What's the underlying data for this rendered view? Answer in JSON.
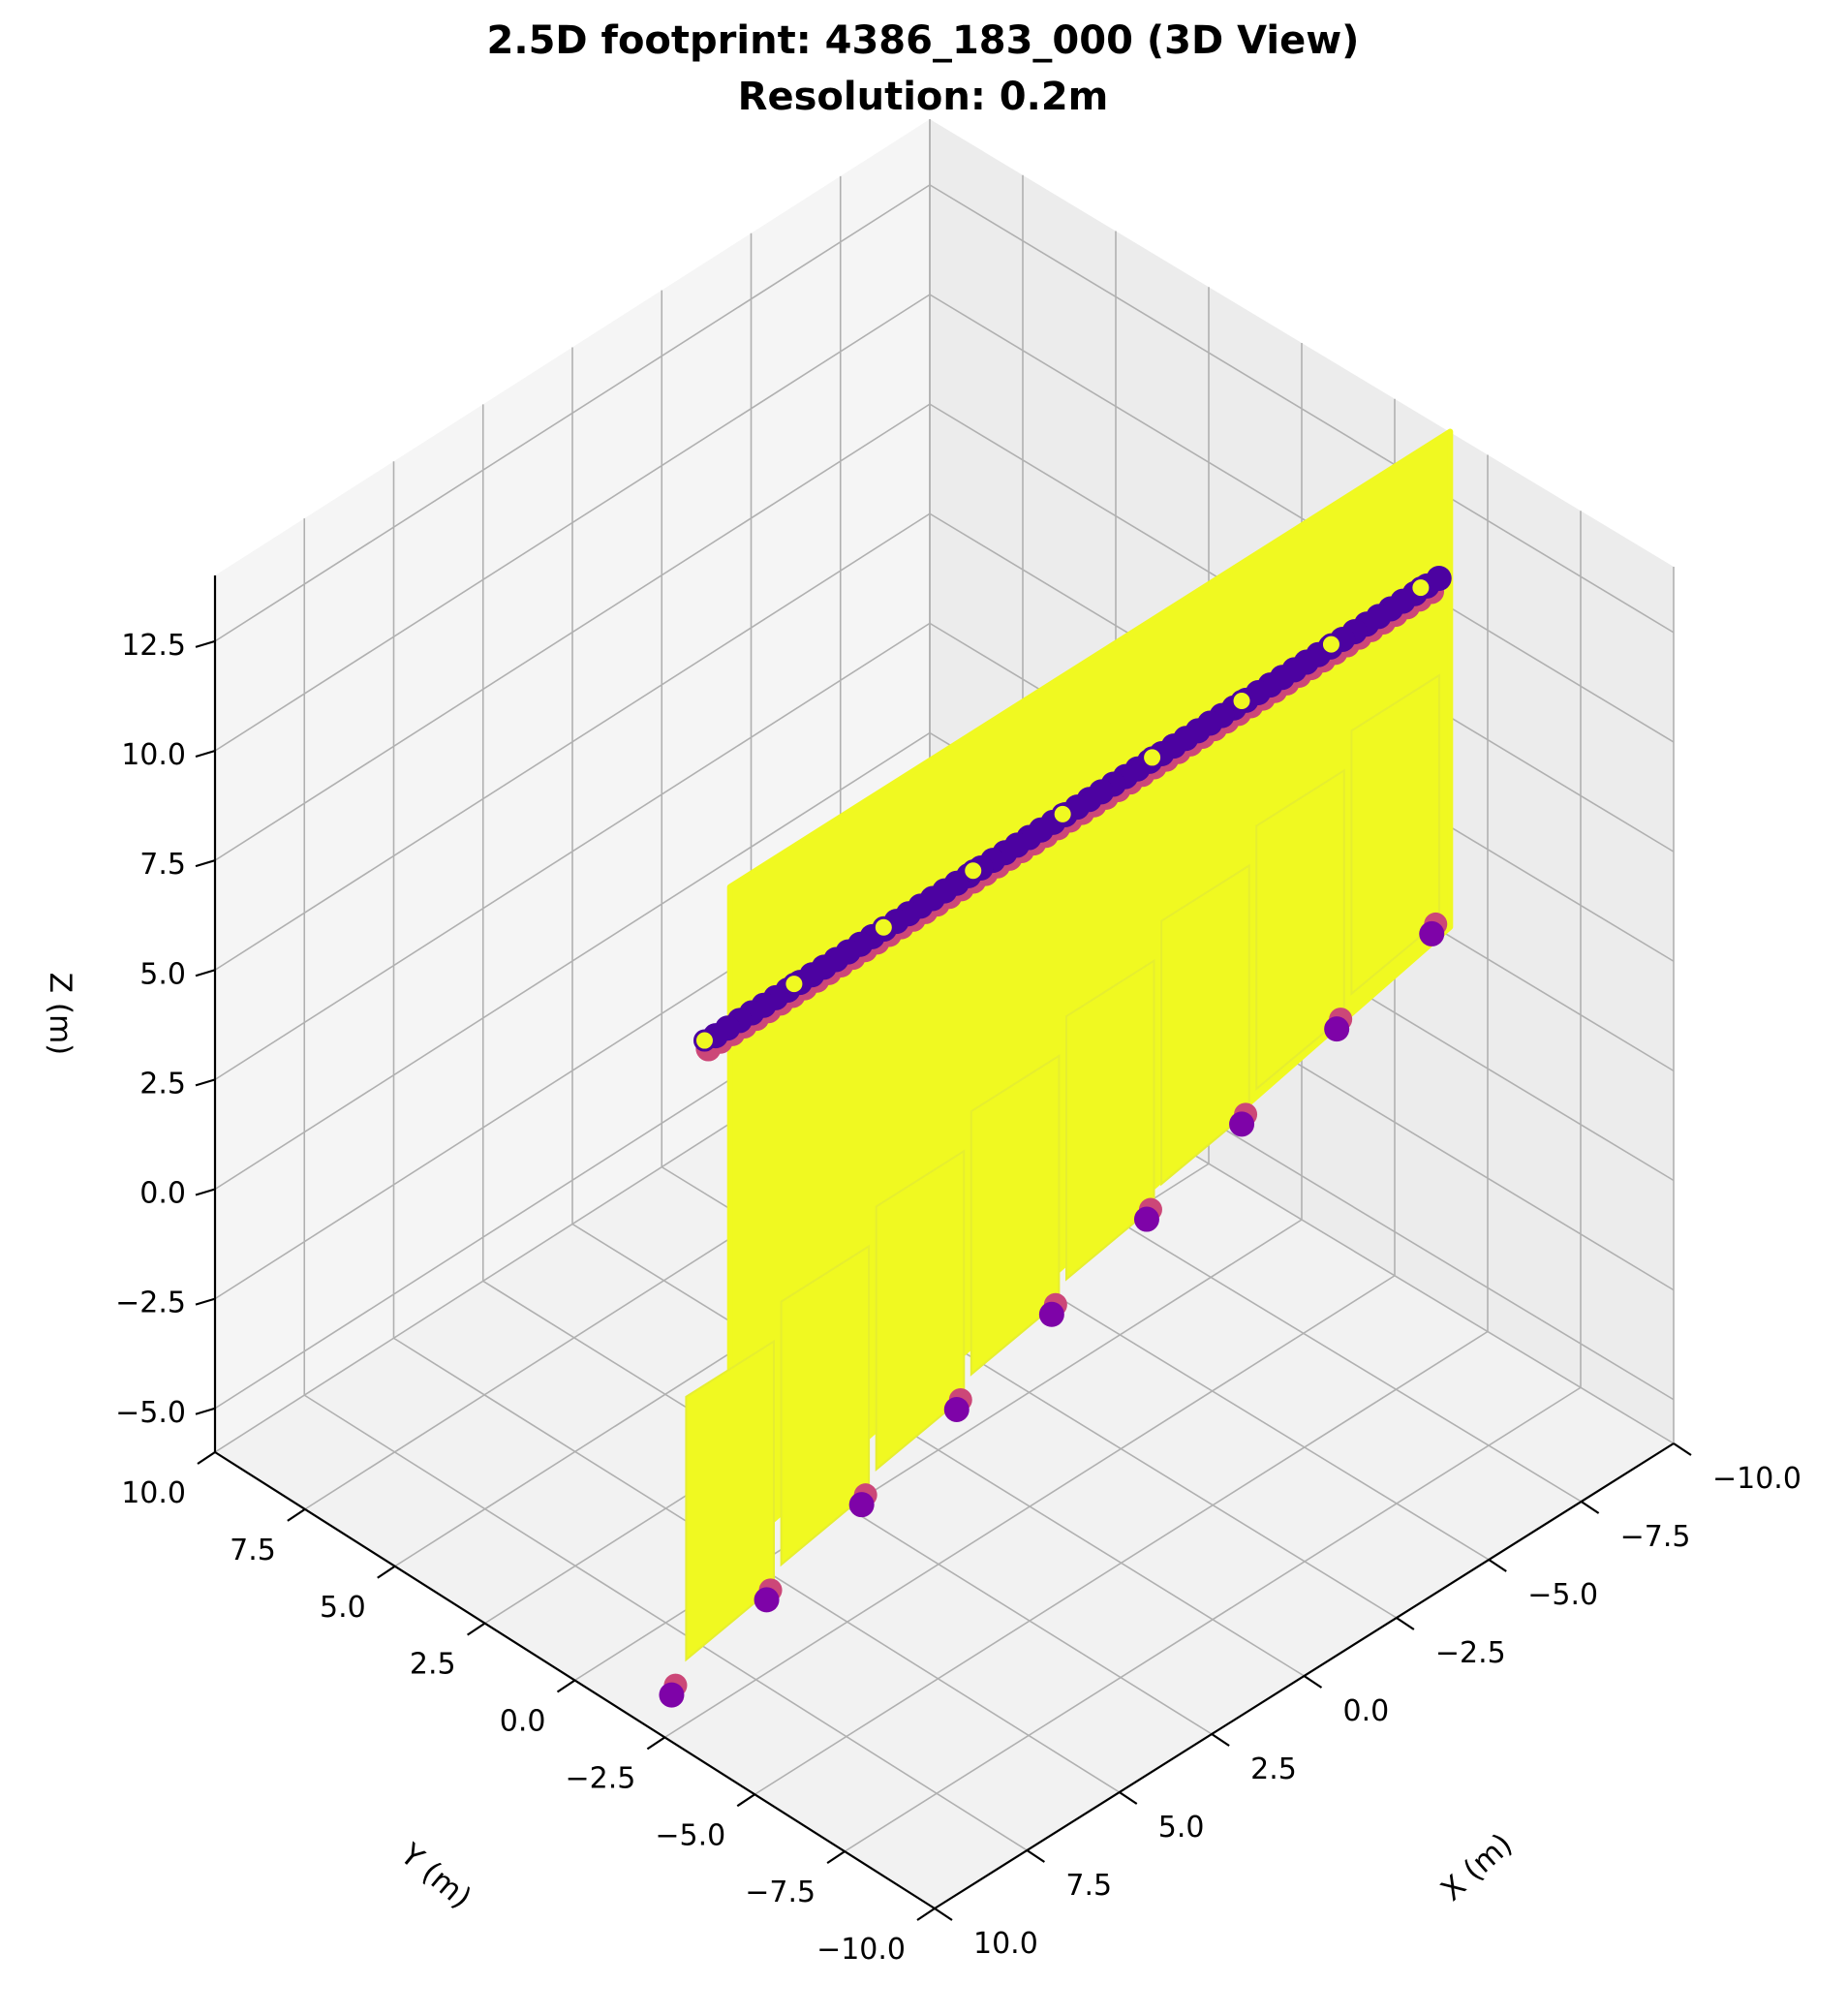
{
  "chart_data": {
    "type": "scatter",
    "projection": "3d",
    "title": "2.5D footprint: 4386_183_000 (3D View)",
    "subtitle": "Resolution: 0.2m",
    "xlabel": "X (m)",
    "ylabel": "Y (m)",
    "zlabel": "Z (m)",
    "xlim": [
      -10,
      10
    ],
    "ylim": [
      -10,
      10
    ],
    "zlim": [
      -6,
      14
    ],
    "grid": true,
    "xticks": [
      "−10.0",
      "−7.5",
      "−5.0",
      "−2.5",
      "0.0",
      "2.5",
      "5.0",
      "7.5",
      "10.0"
    ],
    "yticks": [
      "−10.0",
      "−7.5",
      "−5.0",
      "−2.5",
      "0.0",
      "2.5",
      "5.0",
      "7.5",
      "10.0"
    ],
    "zticks": [
      "−5.0",
      "−2.5",
      "0.0",
      "2.5",
      "5.0",
      "7.5",
      "10.0",
      "12.5"
    ],
    "colormap": "plasma",
    "colors": {
      "high": "#f0f921",
      "mid": "#cc4778",
      "low": "#7e03a8",
      "dark": "#4c02a1"
    },
    "wall": {
      "x_range": [
        -10.5,
        9.2
      ],
      "y_value": -3.5,
      "top_z": 13.5,
      "bottom_z": 2.2
    },
    "roof_lines": [
      {
        "z": 10.0,
        "y": -3.2,
        "x_range": [
          -10.5,
          9.3
        ],
        "color": "#4c02a1"
      },
      {
        "z": 9.6,
        "y": -3.0,
        "x_range": [
          -10.5,
          9.3
        ],
        "color": "#cc4778"
      }
    ],
    "lower_points": [
      {
        "x": -10.2,
        "y": -3.3,
        "z": 2.1
      },
      {
        "x": -7.6,
        "y": -3.3,
        "z": 1.3
      },
      {
        "x": -5.0,
        "y": -3.3,
        "z": 0.5
      },
      {
        "x": -2.4,
        "y": -3.3,
        "z": -0.3
      },
      {
        "x": 0.2,
        "y": -3.3,
        "z": -1.1
      },
      {
        "x": 2.8,
        "y": -3.3,
        "z": -1.9
      },
      {
        "x": 5.4,
        "y": -3.3,
        "z": -2.7
      },
      {
        "x": 8.0,
        "y": -3.3,
        "z": -3.5
      },
      {
        "x": 10.6,
        "y": -3.3,
        "z": -4.3
      }
    ]
  }
}
